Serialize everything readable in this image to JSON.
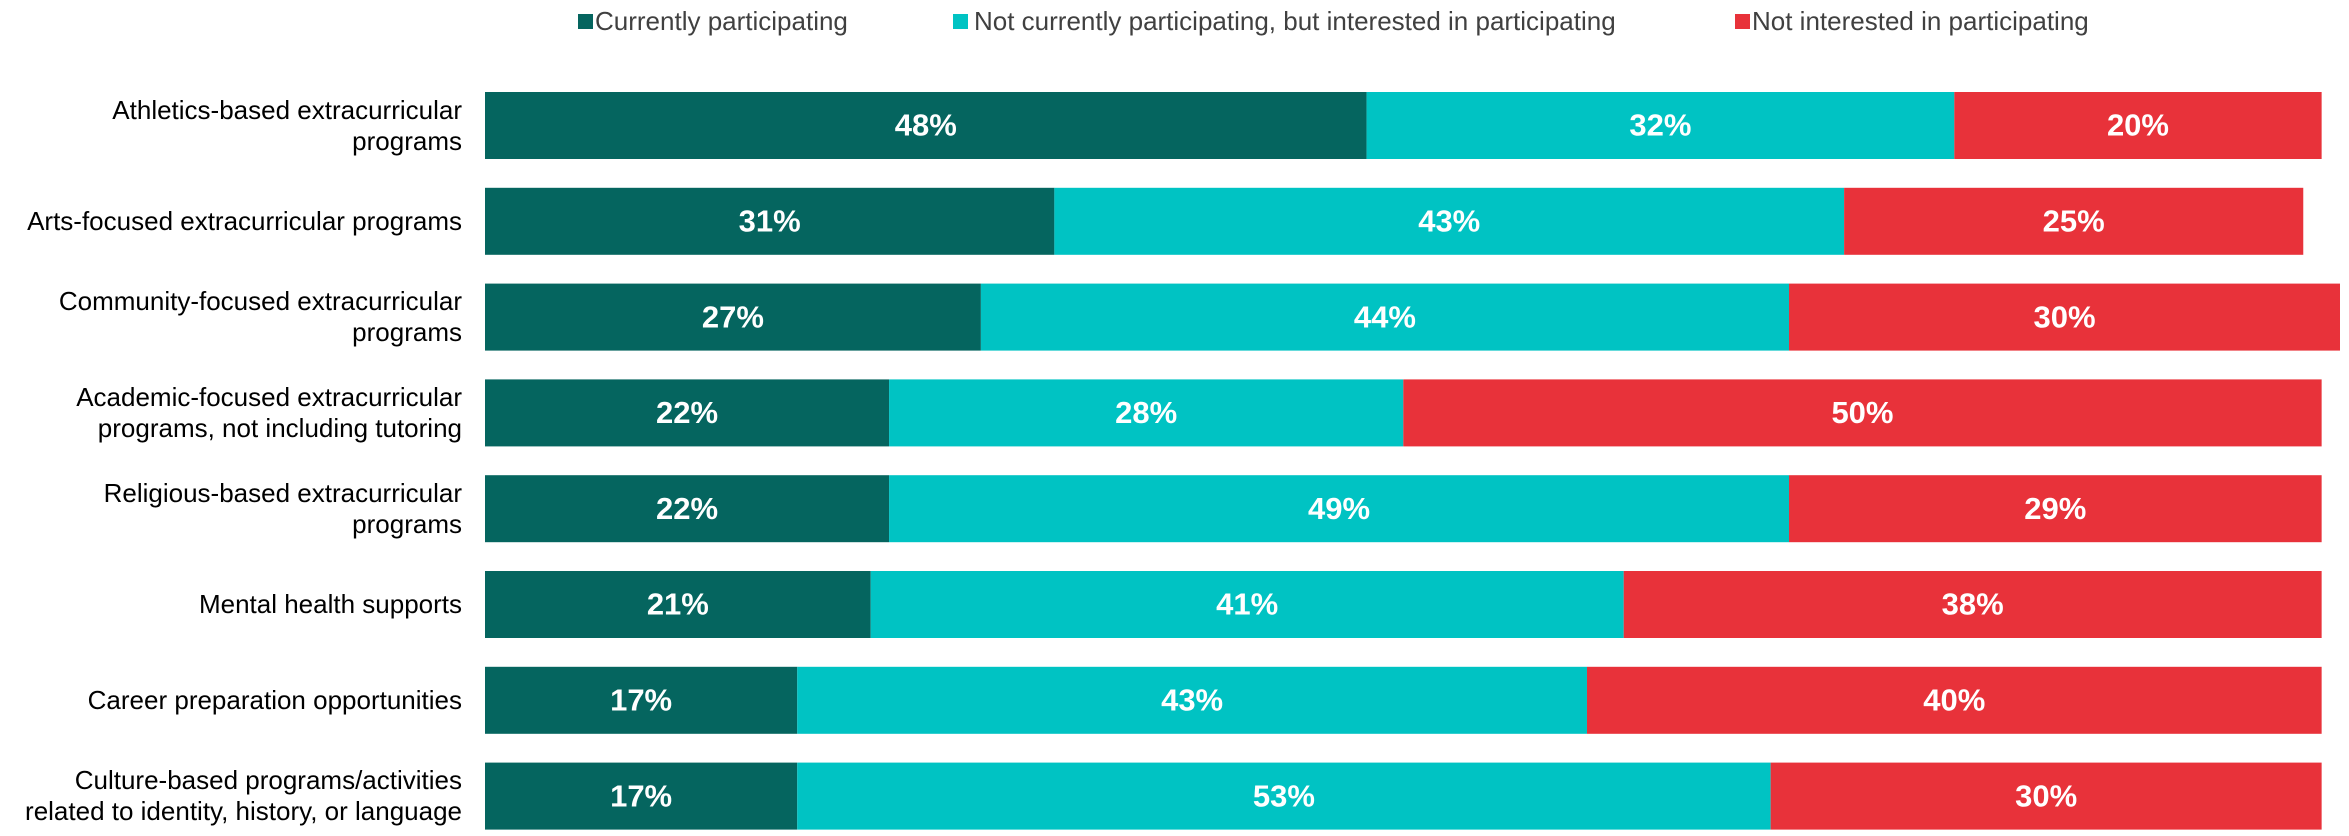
{
  "chart_data": {
    "type": "stacked-bar-horizontal",
    "categories": [
      "Athletics-based extracurricular programs",
      "Arts-focused extracurricular programs",
      "Community-focused extracurricular programs",
      "Academic-focused extracurricular programs, not including tutoring",
      "Religious-based extracurricular programs",
      "Mental health supports",
      "Career preparation opportunities",
      "Culture-based programs/activities related to identity, history, or language"
    ],
    "series": [
      {
        "name": "Currently participating",
        "color": "#05655f",
        "values": [
          48,
          31,
          27,
          22,
          22,
          21,
          17,
          17
        ],
        "value_labels": [
          "48%",
          "31%",
          "27%",
          "22%",
          "22%",
          "21%",
          "17%",
          "17%"
        ]
      },
      {
        "name": "Not currently participating, but interested in participating",
        "color": "#00c3c3",
        "values": [
          32,
          43,
          44,
          28,
          49,
          41,
          43,
          53
        ],
        "value_labels": [
          "32%",
          "43%",
          "44%",
          "28%",
          "49%",
          "41%",
          "43%",
          "53%"
        ]
      },
      {
        "name": "Not interested in participating",
        "color": "#e8323a",
        "values": [
          20,
          25,
          30,
          50,
          29,
          38,
          40,
          30
        ],
        "value_labels": [
          "20%",
          "25%",
          "30%",
          "50%",
          "29%",
          "38%",
          "40%",
          "30%"
        ]
      }
    ],
    "legend": "top"
  }
}
